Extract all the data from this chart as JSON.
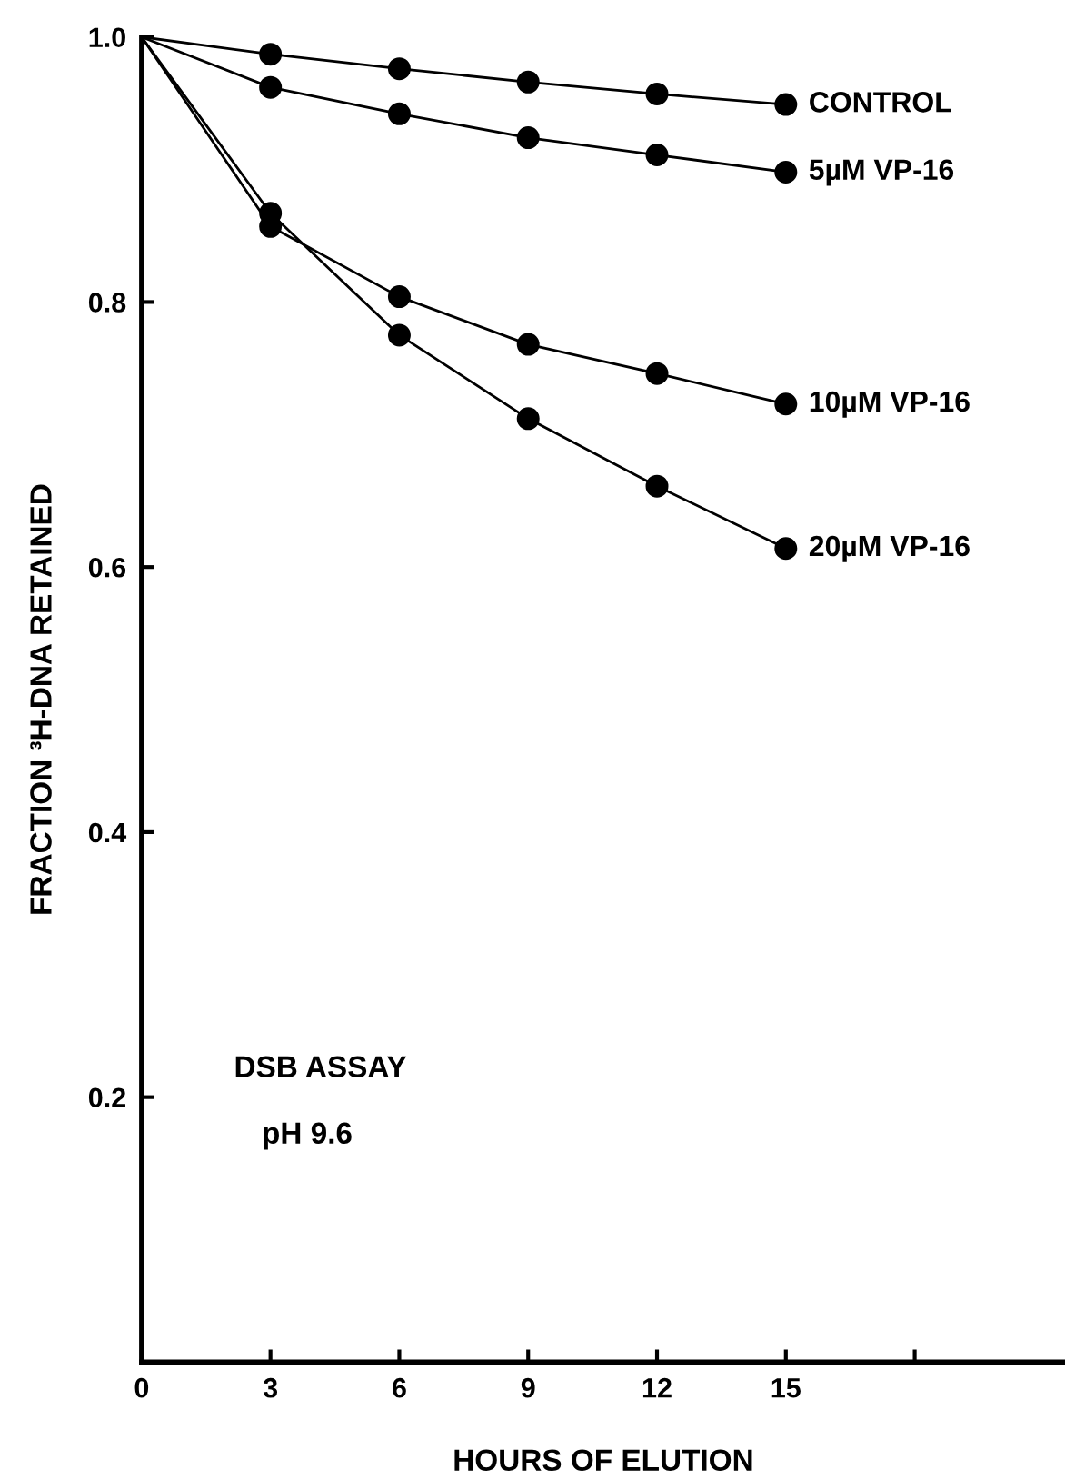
{
  "chart_data": {
    "type": "line",
    "xlabel": "HOURS OF ELUTION",
    "ylabel": "FRACTION ³H-DNA RETAINED",
    "x": [
      0,
      3,
      6,
      9,
      12,
      15
    ],
    "series": [
      {
        "name": "CONTROL",
        "color": "#000000",
        "values": [
          1.0,
          0.987,
          0.976,
          0.966,
          0.957,
          0.949
        ]
      },
      {
        "name": "5µM VP-16",
        "color": "#000000",
        "values": [
          1.0,
          0.962,
          0.942,
          0.924,
          0.911,
          0.898
        ]
      },
      {
        "name": "10µM VP-16",
        "color": "#000000",
        "values": [
          1.0,
          0.857,
          0.804,
          0.768,
          0.746,
          0.723
        ]
      },
      {
        "name": "20µM VP-16",
        "color": "#000000",
        "values": [
          1.0,
          0.867,
          0.775,
          0.712,
          0.661,
          0.614
        ]
      }
    ],
    "xlim": [
      0,
      21.5
    ],
    "xticks": [
      0,
      3,
      6,
      9,
      12,
      15,
      {
        "value": 18,
        "label": null
      }
    ],
    "ylim": [
      0,
      1.0
    ],
    "yticks": [
      0.2,
      0.4,
      0.6,
      0.8,
      {
        "value": 1.0,
        "label": "1.0"
      }
    ],
    "annotations": [
      "DSB ASSAY",
      "pH 9.6"
    ],
    "marker": "circle",
    "line_style": "solid",
    "grid": false,
    "legend": false
  }
}
